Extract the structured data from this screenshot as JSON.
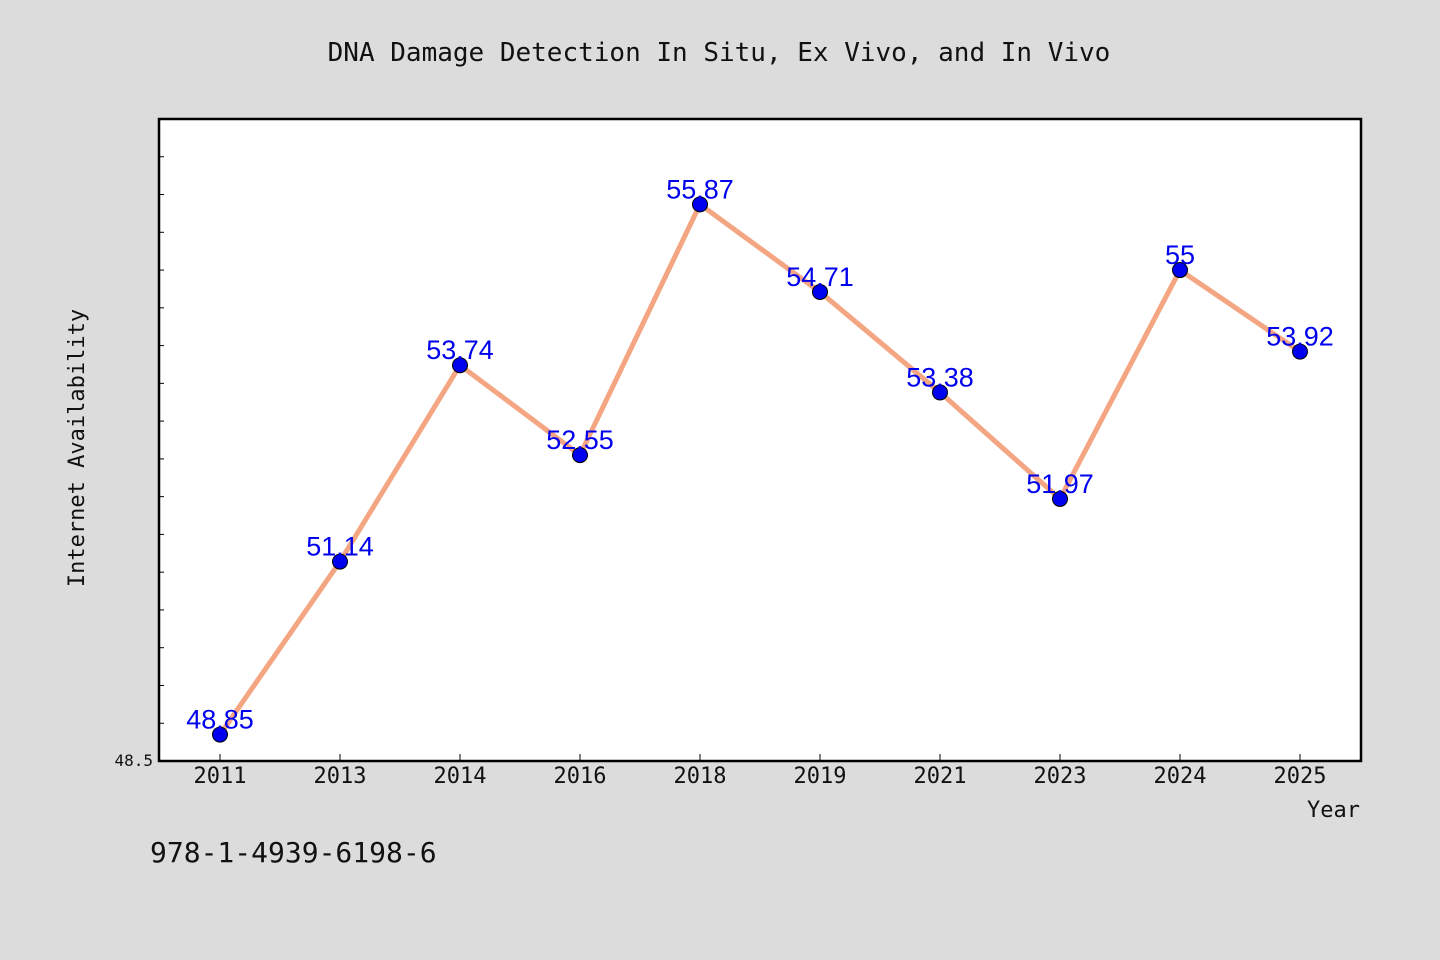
{
  "chart_data": {
    "type": "line",
    "title": "DNA Damage Detection In Situ, Ex Vivo, and In Vivo",
    "xlabel": "Year",
    "ylabel": "Internet Availability",
    "categories": [
      "2011",
      "2013",
      "2014",
      "2016",
      "2018",
      "2019",
      "2021",
      "2023",
      "2024",
      "2025"
    ],
    "series": [
      {
        "values": [
          48.85,
          51.14,
          53.74,
          52.55,
          55.87,
          54.71,
          53.38,
          51.97,
          55.0,
          53.92
        ],
        "labels": [
          "48.85",
          "51.14",
          "53.74",
          "52.55",
          "55.87",
          "54.71",
          "53.38",
          "51.97",
          "55",
          "53.92"
        ],
        "line_color": "#f4a582",
        "marker_color": "#0000ee"
      }
    ],
    "ylim": [
      48.5,
      57.0
    ],
    "y_tick_labels": [
      "48.5"
    ],
    "grid": false,
    "legend": "none",
    "label_color": "#0000ee"
  },
  "footer": {
    "isbn": "978-1-4939-6198-6"
  }
}
